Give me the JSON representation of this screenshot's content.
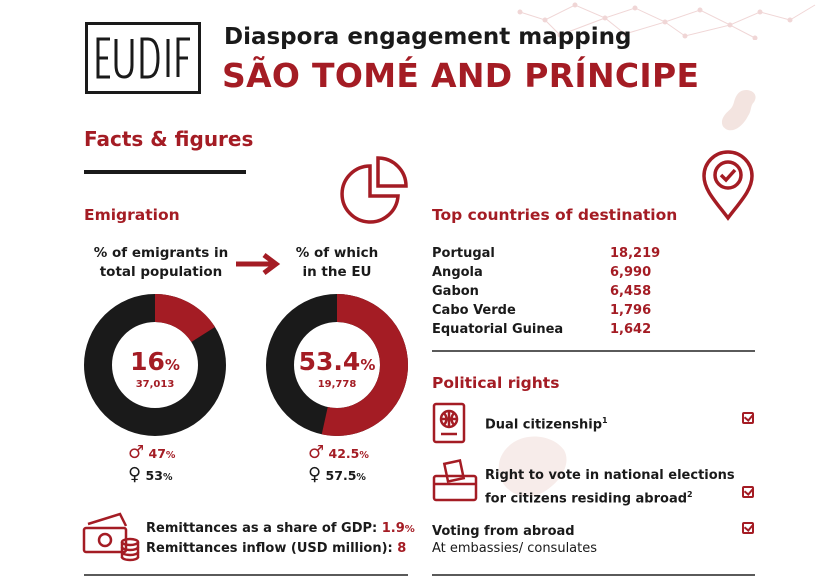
{
  "header": {
    "logo_text": "EUDIF",
    "title": "Diaspora engagement mapping",
    "country": "SÃO TOMÉ AND PRÍNCIPE"
  },
  "facts_heading": "Facts & figures",
  "emigration": {
    "heading": "Emigration",
    "total": {
      "label_line1": "% of emigrants in",
      "label_line2": "total population",
      "percent": "16",
      "percent_sign": "%",
      "fraction": 0.16,
      "count": "37,013",
      "male": "47",
      "female": "53",
      "pct_sign": "%"
    },
    "eu": {
      "label_line1": "% of which",
      "label_line2": "in the EU",
      "percent": "53.4",
      "percent_sign": "%",
      "fraction": 0.534,
      "count": "19,778",
      "male": "42.5",
      "female": "57.5",
      "pct_sign": "%"
    }
  },
  "remittances": {
    "gdp_label": "Remittances as a share of GDP: ",
    "gdp_value": "1.9",
    "gdp_unit": "%",
    "inflow_label": "Remittances inflow (USD million): ",
    "inflow_value": "8"
  },
  "destinations": {
    "heading": "Top countries of destination",
    "rows": [
      {
        "country": "Portugal",
        "value": "18,219"
      },
      {
        "country": "Angola",
        "value": "6,990"
      },
      {
        "country": "Gabon",
        "value": "6,458"
      },
      {
        "country": "Cabo Verde",
        "value": "1,796"
      },
      {
        "country": "Equatorial Guinea",
        "value": "1,642"
      }
    ]
  },
  "political": {
    "heading": "Political rights",
    "dual": "Dual citizenship",
    "dual_sup": "1",
    "vote_line1": "Right to vote in national elections",
    "vote_line2": "for citizens residing abroad",
    "vote_sup": "2",
    "abroad_title": "Voting from abroad",
    "abroad_sub": "At embassies/ consulates"
  },
  "colors": {
    "accent": "#a41c24",
    "dark": "#1a1a1a"
  }
}
